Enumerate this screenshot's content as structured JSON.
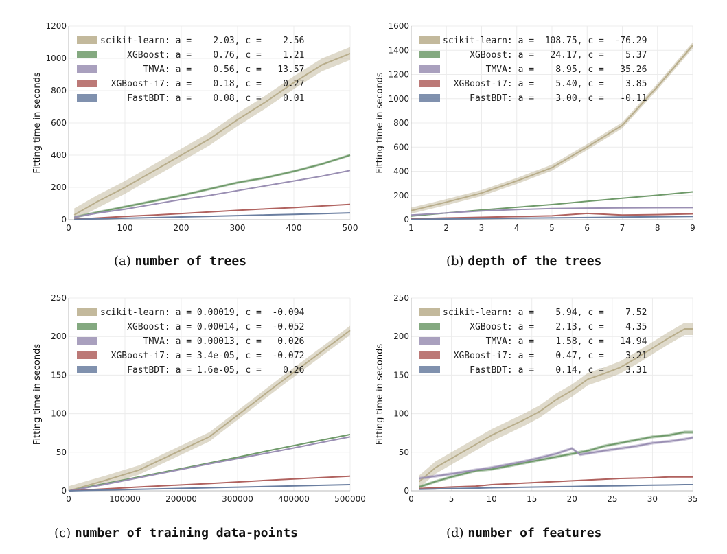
{
  "colors": {
    "scikit-learn": "#b8ad8b",
    "XGBoost": "#6f9a6a",
    "TMVA": "#9a8fb3",
    "XGBoost-i7": "#b0625f",
    "FastBDT": "#6a7ea0",
    "grid": "#ececec",
    "axis": "#bbbbbb"
  },
  "chart_data": [
    {
      "type": "line",
      "caption_label": "(a)",
      "caption_text": "number of trees",
      "xlabel": "",
      "ylabel": "Fitting time in seconds",
      "xlim": [
        0,
        500
      ],
      "ylim": [
        0,
        1200
      ],
      "xticks": [
        "0",
        "100",
        "200",
        "300",
        "400",
        "500"
      ],
      "xtick_values": [
        0,
        100,
        200,
        300,
        400,
        500
      ],
      "yticks": [
        "0",
        "200",
        "400",
        "600",
        "800",
        "1000",
        "1200"
      ],
      "ytick_values": [
        0,
        200,
        400,
        600,
        800,
        1000,
        1200
      ],
      "legend_location": "upper-left",
      "legend": [
        "scikit-learn: a =    2.03, c =    2.56",
        "     XGBoost: a =    0.76, c =    1.21",
        "        TMVA: a =    0.56, c =   13.57",
        "  XGBoost-i7: a =    0.18, c =    0.27",
        "     FastBDT: a =    0.08, c =    0.01"
      ],
      "series": [
        {
          "name": "scikit-learn",
          "x": [
            10,
            50,
            100,
            150,
            200,
            250,
            300,
            350,
            400,
            450,
            500
          ],
          "y": [
            30,
            110,
            200,
            300,
            400,
            500,
            620,
            730,
            850,
            960,
            1030
          ],
          "band": 40
        },
        {
          "name": "XGBoost",
          "x": [
            10,
            50,
            100,
            150,
            200,
            250,
            300,
            350,
            400,
            450,
            500
          ],
          "y": [
            15,
            45,
            80,
            115,
            150,
            190,
            230,
            260,
            300,
            345,
            400
          ],
          "band": 8
        },
        {
          "name": "TMVA",
          "x": [
            10,
            50,
            100,
            150,
            200,
            250,
            300,
            350,
            400,
            450,
            500
          ],
          "y": [
            15,
            40,
            65,
            95,
            125,
            150,
            180,
            210,
            240,
            270,
            305
          ],
          "band": 4
        },
        {
          "name": "XGBoost-i7",
          "x": [
            10,
            50,
            100,
            150,
            200,
            250,
            300,
            350,
            400,
            450,
            500
          ],
          "y": [
            3,
            10,
            20,
            28,
            38,
            48,
            58,
            67,
            75,
            85,
            95
          ],
          "band": 2
        },
        {
          "name": "FastBDT",
          "x": [
            10,
            50,
            100,
            150,
            200,
            250,
            300,
            350,
            400,
            450,
            500
          ],
          "y": [
            2,
            5,
            9,
            13,
            17,
            21,
            25,
            29,
            33,
            37,
            42
          ],
          "band": 1
        }
      ]
    },
    {
      "type": "line",
      "caption_label": "(b)",
      "caption_text": "depth of the trees",
      "xlabel": "",
      "ylabel": "Fitting time in seconds",
      "xlim": [
        1,
        9
      ],
      "ylim": [
        0,
        1600
      ],
      "xticks": [
        "1",
        "2",
        "3",
        "4",
        "5",
        "6",
        "7",
        "8",
        "9"
      ],
      "xtick_values": [
        1,
        2,
        3,
        4,
        5,
        6,
        7,
        8,
        9
      ],
      "yticks": [
        "0",
        "200",
        "400",
        "600",
        "800",
        "1000",
        "1200",
        "1400",
        "1600"
      ],
      "ytick_values": [
        0,
        200,
        400,
        600,
        800,
        1000,
        1200,
        1400,
        1600
      ],
      "legend_location": "upper-left",
      "legend": [
        "scikit-learn: a =  108.75, c =  -76.29",
        "     XGBoost: a =   24.17, c =    5.37",
        "        TMVA: a =    8.95, c =   35.26",
        "  XGBoost-i7: a =    5.40, c =    3.85",
        "     FastBDT: a =    3.00, c =   -0.11"
      ],
      "series": [
        {
          "name": "scikit-learn",
          "x": [
            1,
            2,
            3,
            4,
            5,
            6,
            7,
            8,
            9
          ],
          "y": [
            75,
            145,
            220,
            320,
            430,
            600,
            780,
            1100,
            1440
          ],
          "band": 25
        },
        {
          "name": "XGBoost",
          "x": [
            1,
            2,
            3,
            4,
            5,
            6,
            7,
            8,
            9
          ],
          "y": [
            30,
            55,
            80,
            103,
            125,
            152,
            177,
            202,
            230
          ],
          "band": 4
        },
        {
          "name": "TMVA",
          "x": [
            1,
            2,
            3,
            4,
            5,
            6,
            7,
            8,
            9
          ],
          "y": [
            38,
            55,
            72,
            84,
            92,
            96,
            98,
            99,
            100
          ],
          "band": 2
        },
        {
          "name": "XGBoost-i7",
          "x": [
            1,
            2,
            3,
            4,
            5,
            6,
            7,
            8,
            9
          ],
          "y": [
            8,
            14,
            20,
            26,
            32,
            52,
            38,
            42,
            48
          ],
          "band": 4
        },
        {
          "name": "FastBDT",
          "x": [
            1,
            2,
            3,
            4,
            5,
            6,
            7,
            8,
            9
          ],
          "y": [
            3,
            6,
            9,
            12,
            15,
            18,
            21,
            24,
            27
          ],
          "band": 1
        }
      ]
    },
    {
      "type": "line",
      "caption_label": "(c)",
      "caption_text": "number of training data-points",
      "xlabel": "",
      "ylabel": "Fitting time in seconds",
      "xlim": [
        0,
        500000
      ],
      "ylim": [
        0,
        250
      ],
      "xticks": [
        "0",
        "100000",
        "200000",
        "300000",
        "400000",
        "500000"
      ],
      "xtick_values": [
        0,
        100000,
        200000,
        300000,
        400000,
        500000
      ],
      "yticks": [
        "0",
        "50",
        "100",
        "150",
        "200",
        "250"
      ],
      "ytick_values": [
        0,
        50,
        100,
        150,
        200,
        250
      ],
      "legend_location": "upper-left",
      "legend": [
        "scikit-learn: a = 0.00019, c =  -0.094",
        "     XGBoost: a = 0.00014, c =  -0.052",
        "        TMVA: a = 0.00013, c =   0.026",
        "  XGBoost-i7: a = 3.4e-05, c =  -0.072",
        "     FastBDT: a = 1.6e-05, c =    0.26"
      ],
      "series": [
        {
          "name": "scikit-learn",
          "x": [
            0,
            62500,
            125000,
            250000,
            375000,
            500000
          ],
          "y": [
            0,
            13,
            27,
            70,
            140,
            208
          ],
          "band": 6
        },
        {
          "name": "XGBoost",
          "x": [
            0,
            62500,
            125000,
            250000,
            375000,
            500000
          ],
          "y": [
            0,
            9,
            18,
            36,
            55,
            73
          ],
          "band": 1
        },
        {
          "name": "TMVA",
          "x": [
            0,
            62500,
            125000,
            250000,
            375000,
            500000
          ],
          "y": [
            0,
            8,
            17,
            35,
            52,
            70
          ],
          "band": 1
        },
        {
          "name": "XGBoost-i7",
          "x": [
            0,
            62500,
            125000,
            250000,
            375000,
            500000
          ],
          "y": [
            0,
            2.5,
            5,
            9.5,
            14.5,
            19
          ],
          "band": 0.5
        },
        {
          "name": "FastBDT",
          "x": [
            0,
            62500,
            125000,
            250000,
            375000,
            500000
          ],
          "y": [
            0,
            1,
            2,
            4,
            6,
            8
          ],
          "band": 0.3
        }
      ]
    },
    {
      "type": "line",
      "caption_label": "(d)",
      "caption_text": "number of features",
      "xlabel": "",
      "ylabel": "Fitting time in seconds",
      "xlim": [
        0,
        35
      ],
      "ylim": [
        0,
        250
      ],
      "xticks": [
        "0",
        "5",
        "10",
        "15",
        "20",
        "25",
        "30",
        "35"
      ],
      "xtick_values": [
        0,
        5,
        10,
        15,
        20,
        25,
        30,
        35
      ],
      "yticks": [
        "0",
        "50",
        "100",
        "150",
        "200",
        "250"
      ],
      "ytick_values": [
        0,
        50,
        100,
        150,
        200,
        250
      ],
      "legend_location": "upper-left",
      "legend": [
        "scikit-learn: a =    5.94, c =    7.52",
        "     XGBoost: a =    2.13, c =    4.35",
        "        TMVA: a =    1.58, c =   14.94",
        "  XGBoost-i7: a =    0.47, c =    3.21",
        "     FastBDT: a =    0.14, c =    3.31"
      ],
      "series": [
        {
          "name": "scikit-learn",
          "x": [
            1,
            3,
            5,
            8,
            10,
            12,
            14,
            16,
            18,
            20,
            22,
            24,
            26,
            28,
            30,
            32,
            34,
            35
          ],
          "y": [
            12,
            30,
            42,
            60,
            72,
            82,
            92,
            103,
            118,
            130,
            145,
            152,
            160,
            172,
            185,
            198,
            210,
            210
          ],
          "band": 8
        },
        {
          "name": "XGBoost",
          "x": [
            1,
            3,
            5,
            8,
            10,
            12,
            14,
            16,
            18,
            20,
            22,
            24,
            26,
            28,
            30,
            32,
            34,
            35
          ],
          "y": [
            5,
            12,
            18,
            26,
            28,
            32,
            36,
            40,
            44,
            48,
            52,
            58,
            62,
            66,
            70,
            72,
            76,
            76
          ],
          "band": 2
        },
        {
          "name": "TMVA",
          "x": [
            1,
            3,
            5,
            8,
            10,
            12,
            14,
            16,
            18,
            20,
            21,
            24,
            26,
            28,
            30,
            32,
            34,
            35
          ],
          "y": [
            16,
            19,
            22,
            27,
            30,
            34,
            38,
            43,
            48,
            55,
            47,
            52,
            55,
            58,
            62,
            64,
            67,
            69
          ],
          "band": 2
        },
        {
          "name": "XGBoost-i7",
          "x": [
            1,
            3,
            5,
            8,
            10,
            12,
            14,
            16,
            18,
            20,
            22,
            24,
            26,
            28,
            30,
            32,
            34,
            35
          ],
          "y": [
            3,
            4,
            5,
            6,
            8,
            9,
            10,
            11,
            12,
            13,
            14,
            15,
            16,
            16.5,
            17,
            18,
            18,
            18
          ],
          "band": 0.8
        },
        {
          "name": "FastBDT",
          "x": [
            1,
            3,
            5,
            8,
            10,
            12,
            14,
            16,
            18,
            20,
            22,
            24,
            26,
            28,
            30,
            32,
            34,
            35
          ],
          "y": [
            2,
            2.5,
            3,
            3.5,
            4,
            4.3,
            4.7,
            5,
            5.3,
            5.6,
            6,
            6.3,
            6.6,
            7,
            7.3,
            7.6,
            8,
            8
          ],
          "band": 0.3
        }
      ]
    }
  ]
}
